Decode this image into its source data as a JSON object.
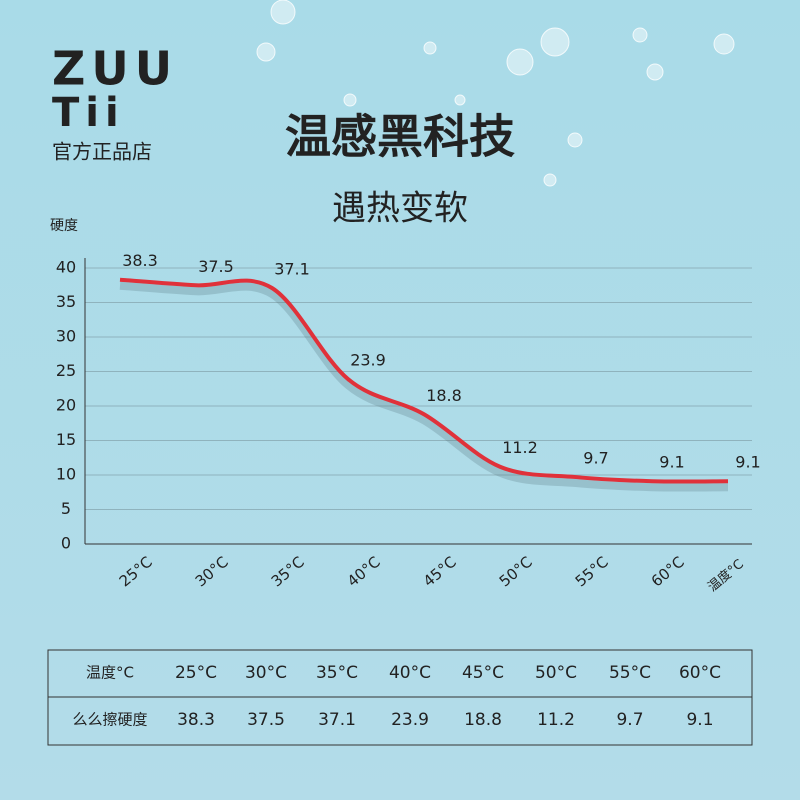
{
  "brand": {
    "logo_line1": "ZUU",
    "logo_line2": "Tii",
    "store": "官方正品店"
  },
  "chart_data": {
    "type": "line",
    "title": "温感黑科技",
    "subtitle": "遇热变软",
    "y_label": "硬度",
    "x_label": "温度°C",
    "categories": [
      "25°C",
      "30°C",
      "35°C",
      "40°C",
      "45°C",
      "50°C",
      "55°C",
      "60°C",
      null
    ],
    "series": [
      {
        "name": "硬度",
        "color": "#e0313a",
        "values": [
          38.3,
          37.5,
          37.1,
          23.9,
          18.8,
          11.2,
          9.7,
          9.1,
          9.1
        ]
      }
    ],
    "ylim": [
      0,
      40
    ],
    "yticks": [
      0,
      5,
      10,
      15,
      20,
      25,
      30,
      35,
      40
    ],
    "grid": true
  },
  "table": {
    "rows": [
      [
        "温度°C",
        "25°C",
        "30°C",
        "35°C",
        "40°C",
        "45°C",
        "50°C",
        "55°C",
        "60°C"
      ],
      [
        "么么擦硬度",
        "38.3",
        "37.5",
        "37.1",
        "23.9",
        "18.8",
        "11.2",
        "9.7",
        "9.1"
      ]
    ]
  }
}
